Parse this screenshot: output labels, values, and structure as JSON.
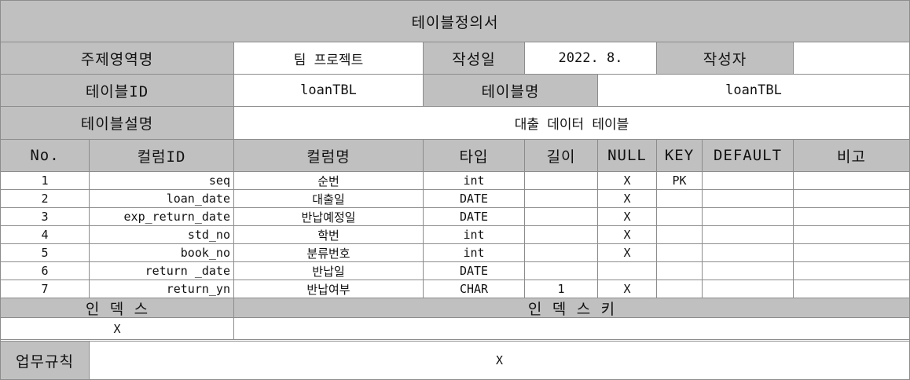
{
  "title": "테이블정의서",
  "meta": {
    "subject_label": "주제영역명",
    "subject_value": "팀 프로젝트",
    "date_label": "작성일",
    "date_value": "2022. 8.",
    "author_label": "작성자",
    "author_value": "",
    "table_id_label": "테이블ID",
    "table_id_value": "loanTBL",
    "table_name_label": "테이블명",
    "table_name_value": "loanTBL",
    "desc_label": "테이블설명",
    "desc_value": "대출 데이터 테이블"
  },
  "columns_header": {
    "no": "No.",
    "col_id": "컬럼ID",
    "col_name": "컬럼명",
    "type": "타입",
    "length": "길이",
    "null": "NULL",
    "key": "KEY",
    "default": "DEFAULT",
    "note": "비고"
  },
  "rows": [
    {
      "no": "1",
      "col_id": "seq",
      "col_name": "순번",
      "type": "int",
      "length": "",
      "null": "X",
      "key": "PK",
      "default": "",
      "note": ""
    },
    {
      "no": "2",
      "col_id": "loan_date",
      "col_name": "대출일",
      "type": "DATE",
      "length": "",
      "null": "X",
      "key": "",
      "default": "",
      "note": ""
    },
    {
      "no": "3",
      "col_id": "exp_return_date",
      "col_name": "반납예정일",
      "type": "DATE",
      "length": "",
      "null": "X",
      "key": "",
      "default": "",
      "note": ""
    },
    {
      "no": "4",
      "col_id": "std_no",
      "col_name": "학번",
      "type": "int",
      "length": "",
      "null": "X",
      "key": "",
      "default": "",
      "note": ""
    },
    {
      "no": "5",
      "col_id": "book_no",
      "col_name": "분류번호",
      "type": "int",
      "length": "",
      "null": "X",
      "key": "",
      "default": "",
      "note": ""
    },
    {
      "no": "6",
      "col_id": "return _date",
      "col_name": "반납일",
      "type": "DATE",
      "length": "",
      "null": "",
      "key": "",
      "default": "",
      "note": ""
    },
    {
      "no": "7",
      "col_id": "return_yn",
      "col_name": "반납여부",
      "type": "CHAR",
      "length": "1",
      "null": "X",
      "key": "",
      "default": "",
      "note": ""
    }
  ],
  "index": {
    "index_label": "인 덱 스",
    "index_key_label": "인 덱 스 키",
    "index_value": "X",
    "index_key_value": ""
  },
  "business": {
    "label": "업무규칙",
    "value": "X"
  }
}
